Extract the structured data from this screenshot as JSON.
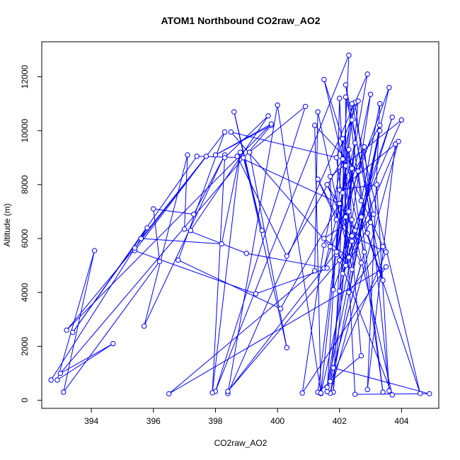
{
  "chart_data": {
    "type": "line",
    "title": "ATOM1 Northbound CO2raw_AO2",
    "xlabel": "CO2raw_AO2",
    "ylabel": "Altitude (m)",
    "xlim": [
      392.4,
      405.2
    ],
    "ylim": [
      -300,
      13300
    ],
    "x_ticks": [
      394,
      396,
      398,
      400,
      402,
      404
    ],
    "y_ticks": [
      0,
      2000,
      4000,
      6000,
      8000,
      10000,
      12000
    ],
    "series_color": "#0000FF",
    "marker": "open-circle",
    "grid": false,
    "points": [
      [
        392.7,
        750
      ],
      [
        395.6,
        6000
      ],
      [
        395.8,
        6400
      ],
      [
        393.4,
        2520
      ],
      [
        397.4,
        9050
      ],
      [
        398.9,
        9000
      ],
      [
        399.5,
        6300
      ],
      [
        398.6,
        10700
      ],
      [
        400.3,
        1950
      ],
      [
        399.1,
        9200
      ],
      [
        400.9,
        10900
      ],
      [
        398.0,
        330
      ],
      [
        402.3,
        12800
      ],
      [
        401.8,
        300
      ],
      [
        402.5,
        9550
      ],
      [
        401.5,
        4900
      ],
      [
        403.6,
        11600
      ],
      [
        401.4,
        250
      ],
      [
        400.0,
        10950
      ],
      [
        398.4,
        250
      ],
      [
        402.9,
        12100
      ],
      [
        401.9,
        5400
      ],
      [
        403.0,
        11350
      ],
      [
        401.6,
        480
      ],
      [
        403.3,
        10000
      ],
      [
        401.7,
        260
      ],
      [
        403.9,
        9600
      ],
      [
        402.1,
        4700
      ],
      [
        403.0,
        6600
      ],
      [
        402.5,
        11050
      ],
      [
        401.5,
        5750
      ],
      [
        400.8,
        270
      ],
      [
        403.5,
        4950
      ],
      [
        396.5,
        240
      ],
      [
        401.2,
        4800
      ],
      [
        401.3,
        10700
      ],
      [
        402.3,
        5300
      ],
      [
        401.5,
        6000
      ],
      [
        402.4,
        6700
      ],
      [
        403.7,
        200
      ],
      [
        402.0,
        5200
      ],
      [
        398.4,
        330
      ],
      [
        401.9,
        5500
      ],
      [
        402.4,
        10400
      ],
      [
        401.3,
        300
      ],
      [
        402.7,
        1650
      ],
      [
        402.1,
        9700
      ],
      [
        401.6,
        320
      ],
      [
        402.7,
        5100
      ],
      [
        401.3,
        8200
      ],
      [
        401.9,
        6700
      ],
      [
        402.0,
        11200
      ],
      [
        402.5,
        220
      ],
      [
        404.9,
        240
      ],
      [
        401.8,
        1200
      ],
      [
        402.8,
        5500
      ],
      [
        401.5,
        11900
      ],
      [
        402.4,
        8600
      ],
      [
        401.7,
        700
      ],
      [
        403.5,
        5500
      ],
      [
        402.4,
        6100
      ],
      [
        402.3,
        9300
      ],
      [
        403.4,
        300
      ],
      [
        402.7,
        6800
      ],
      [
        404.6,
        250
      ],
      [
        402.4,
        11000
      ],
      [
        401.4,
        270
      ],
      [
        401.2,
        10200
      ],
      [
        402.6,
        8500
      ],
      [
        402.9,
        6200
      ],
      [
        403.4,
        4450
      ],
      [
        402.2,
        11700
      ],
      [
        402.7,
        7400
      ],
      [
        403.3,
        11000
      ],
      [
        402.9,
        400
      ],
      [
        403.8,
        9500
      ],
      [
        402.0,
        7800
      ],
      [
        403.2,
        8000
      ],
      [
        403.6,
        350
      ],
      [
        402.8,
        9400
      ],
      [
        402.2,
        6800
      ],
      [
        402.2,
        8700
      ],
      [
        403.4,
        5700
      ],
      [
        402.3,
        4000
      ],
      [
        403.3,
        10200
      ],
      [
        402.1,
        7700
      ],
      [
        402.0,
        5200
      ],
      [
        404.0,
        10400
      ],
      [
        401.7,
        8300
      ],
      [
        401.8,
        4100
      ],
      [
        403.7,
        10500
      ],
      [
        402.2,
        5000
      ],
      [
        402.2,
        11250
      ],
      [
        403.1,
        6900
      ],
      [
        402.4,
        5900
      ],
      [
        401.6,
        8000
      ],
      [
        402.5,
        6300
      ],
      [
        402.0,
        4050
      ],
      [
        402.3,
        7000
      ],
      [
        402.6,
        11100
      ],
      [
        401.9,
        9000
      ],
      [
        402.4,
        4850
      ],
      [
        401.7,
        5700
      ],
      [
        398.5,
        9950
      ],
      [
        402.1,
        8950
      ],
      [
        400.3,
        5350
      ],
      [
        398.7,
        9050
      ],
      [
        402.0,
        7300
      ],
      [
        400.1,
        3400
      ],
      [
        396.8,
        5200
      ],
      [
        398.3,
        9950
      ],
      [
        395.4,
        5550
      ],
      [
        399.3,
        3950
      ],
      [
        401.6,
        4900
      ],
      [
        399.0,
        5450
      ],
      [
        397.0,
        6350
      ],
      [
        397.1,
        9100
      ],
      [
        395.7,
        2750
      ],
      [
        398.3,
        9100
      ],
      [
        397.3,
        6900
      ],
      [
        396.0,
        7100
      ],
      [
        396.2,
        5150
      ],
      [
        393.1,
        300
      ],
      [
        394.1,
        5550
      ],
      [
        392.9,
        750
      ],
      [
        394.7,
        2100
      ],
      [
        393.0,
        1000
      ],
      [
        399.8,
        10200
      ],
      [
        398.0,
        9100
      ],
      [
        399.8,
        10250
      ],
      [
        393.2,
        2600
      ],
      [
        395.4,
        5650
      ],
      [
        397.7,
        9050
      ],
      [
        395.6,
        6000
      ],
      [
        398.2,
        5800
      ],
      [
        398.8,
        9200
      ],
      [
        397.9,
        280
      ],
      [
        398.3,
        9000
      ],
      [
        399.7,
        10550
      ],
      [
        397.2,
        6300
      ]
    ]
  }
}
